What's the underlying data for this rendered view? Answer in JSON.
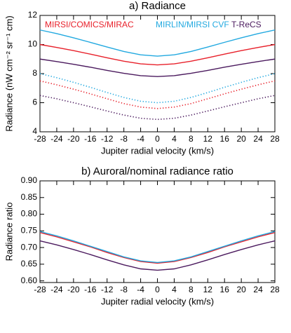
{
  "chart_data": [
    {
      "type": "line",
      "title": "a) Radiance",
      "xlabel": "Jupiter radial velocity (km/s)",
      "ylabel": "Radiance (nW cm⁻² sr⁻¹ cm)",
      "x": [
        -28,
        -24,
        -20,
        -16,
        -12,
        -8,
        -4,
        0,
        4,
        8,
        12,
        16,
        20,
        24,
        28
      ],
      "xlim": [
        -28,
        28
      ],
      "xticks": [
        -28,
        -24,
        -20,
        -16,
        -12,
        -8,
        -4,
        0,
        4,
        8,
        12,
        16,
        20,
        24,
        28
      ],
      "ylim": [
        4,
        12
      ],
      "yticks": [
        4,
        6,
        8,
        10,
        12
      ],
      "legend": "top",
      "series": [
        {
          "name": "MIRSI/COMICS/MIRAC",
          "color": "#e8202a",
          "values": [
            10.0,
            9.8,
            9.58,
            9.34,
            9.09,
            8.85,
            8.67,
            8.6,
            8.67,
            8.85,
            9.09,
            9.34,
            9.58,
            9.8,
            10.0
          ]
        },
        {
          "name": "MIRLIN/MIRSI CVF",
          "color": "#22a9e0",
          "values": [
            11.0,
            10.75,
            10.46,
            10.15,
            9.83,
            9.52,
            9.29,
            9.2,
            9.29,
            9.52,
            9.83,
            10.15,
            10.46,
            10.75,
            11.0
          ]
        },
        {
          "name": "T-ReCS",
          "color": "#4b1a5e",
          "values": [
            9.0,
            8.83,
            8.64,
            8.44,
            8.22,
            8.02,
            7.86,
            7.8,
            7.86,
            8.02,
            8.22,
            8.44,
            8.64,
            8.83,
            9.0
          ]
        },
        {
          "color": "#e8202a",
          "style": "dotted",
          "values": [
            7.5,
            7.23,
            6.93,
            6.61,
            6.27,
            5.94,
            5.7,
            5.6,
            5.7,
            5.94,
            6.27,
            6.61,
            6.93,
            7.23,
            7.5
          ]
        },
        {
          "color": "#22a9e0",
          "style": "dotted",
          "values": [
            8.0,
            7.72,
            7.4,
            7.06,
            6.7,
            6.36,
            6.1,
            6.0,
            6.1,
            6.36,
            6.7,
            7.06,
            7.4,
            7.72,
            8.0
          ]
        },
        {
          "color": "#4b1a5e",
          "style": "dotted",
          "values": [
            6.5,
            6.27,
            6.0,
            5.72,
            5.43,
            5.15,
            4.93,
            4.85,
            4.93,
            5.15,
            5.43,
            5.72,
            6.0,
            6.27,
            6.5
          ]
        }
      ]
    },
    {
      "type": "line",
      "title": "b) Auroral/nominal radiance ratio",
      "xlabel": "Jupiter radial velocity (km/s)",
      "ylabel": "Radiance ratio",
      "x": [
        -28,
        -24,
        -20,
        -16,
        -12,
        -8,
        -4,
        0,
        4,
        8,
        12,
        16,
        20,
        24,
        28
      ],
      "xlim": [
        -28,
        28
      ],
      "xticks": [
        -28,
        -24,
        -20,
        -16,
        -12,
        -8,
        -4,
        0,
        4,
        8,
        12,
        16,
        20,
        24,
        28
      ],
      "ylim": [
        0.595,
        0.9
      ],
      "yticks": [
        {
          "value": 0.6,
          "label": "0.60"
        },
        {
          "value": 0.65,
          "label": "0.65"
        },
        {
          "value": 0.7,
          "label": "0.70"
        },
        {
          "value": 0.75,
          "label": "0.75"
        },
        {
          "value": 0.8,
          "label": "0.80"
        },
        {
          "value": 0.85,
          "label": "0.85"
        },
        {
          "value": 0.9,
          "label": "0.90"
        }
      ],
      "series": [
        {
          "color": "#e8202a",
          "values": [
            0.745,
            0.732,
            0.717,
            0.702,
            0.685,
            0.67,
            0.658,
            0.653,
            0.658,
            0.67,
            0.685,
            0.702,
            0.717,
            0.732,
            0.745
          ]
        },
        {
          "color": "#22a9e0",
          "values": [
            0.748,
            0.735,
            0.72,
            0.704,
            0.688,
            0.672,
            0.66,
            0.655,
            0.66,
            0.672,
            0.688,
            0.704,
            0.72,
            0.735,
            0.748
          ]
        },
        {
          "color": "#4b1a5e",
          "values": [
            0.72,
            0.708,
            0.694,
            0.679,
            0.663,
            0.648,
            0.636,
            0.632,
            0.636,
            0.648,
            0.663,
            0.679,
            0.694,
            0.708,
            0.72
          ]
        }
      ]
    }
  ]
}
